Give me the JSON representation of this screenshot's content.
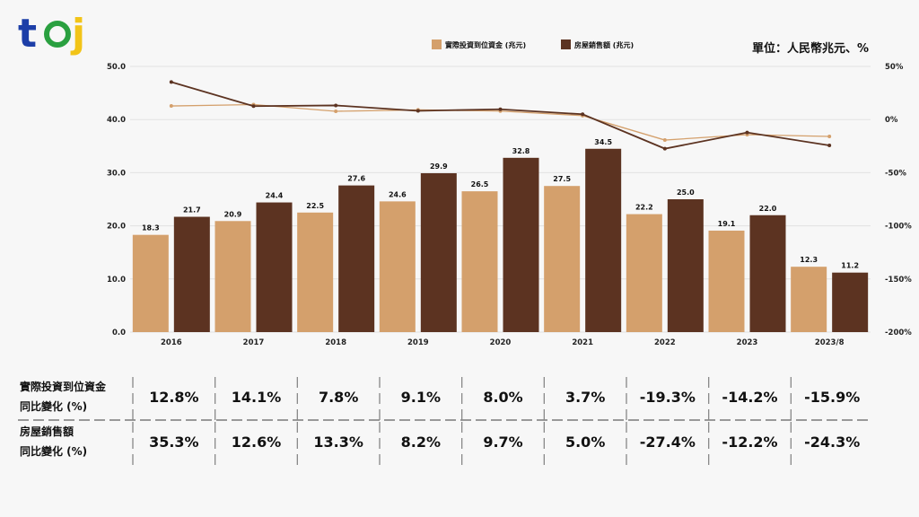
{
  "unit_label": "單位：人民幣兆元、%",
  "logo_text": "tej",
  "colors": {
    "invest": "#d4a06c",
    "sales": "#5c3321",
    "grid": "#e2e2e2"
  },
  "chart_data": {
    "type": "bar+line",
    "categories": [
      "2016",
      "2017",
      "2018",
      "2019",
      "2020",
      "2021",
      "2022",
      "2023",
      "2023/8"
    ],
    "series": [
      {
        "name": "實際投資到位資金 (兆元)",
        "type": "bar",
        "axis": "left",
        "values": [
          18.3,
          20.9,
          22.5,
          24.6,
          26.5,
          27.5,
          22.2,
          19.1,
          12.3
        ]
      },
      {
        "name": "房屋銷售額 (兆元)",
        "type": "bar",
        "axis": "left",
        "values": [
          21.7,
          24.4,
          27.6,
          29.9,
          32.8,
          34.5,
          25.0,
          22.0,
          11.2
        ]
      },
      {
        "type": "line",
        "axis": "right",
        "values": [
          12.8,
          14.1,
          7.8,
          9.1,
          8.0,
          3.7,
          -19.3,
          -14.2,
          -15.9
        ]
      },
      {
        "type": "line",
        "axis": "right",
        "values": [
          35.3,
          12.6,
          13.3,
          8.2,
          9.7,
          5.0,
          -27.4,
          -12.2,
          -24.3
        ]
      }
    ],
    "ylim": [
      0,
      50
    ],
    "yticks": [
      "0.0",
      "10.0",
      "20.0",
      "30.0",
      "40.0",
      "50.0"
    ],
    "y2lim": [
      -200,
      50
    ],
    "y2ticks": [
      "-200%",
      "-150%",
      "-100%",
      "-50%",
      "0%",
      "50%"
    ],
    "grid": true,
    "legend": "top-center"
  },
  "table": {
    "rows": [
      {
        "label": [
          "實際投資到位資金",
          "同比變化 (%)"
        ],
        "values": [
          "12.8%",
          "14.1%",
          "7.8%",
          "9.1%",
          "8.0%",
          "3.7%",
          "-19.3%",
          "-14.2%",
          "-15.9%"
        ]
      },
      {
        "label": [
          "房屋銷售額",
          "同比變化 (%)"
        ],
        "values": [
          "35.3%",
          "12.6%",
          "13.3%",
          "8.2%",
          "9.7%",
          "5.0%",
          "-27.4%",
          "-12.2%",
          "-24.3%"
        ]
      }
    ]
  }
}
